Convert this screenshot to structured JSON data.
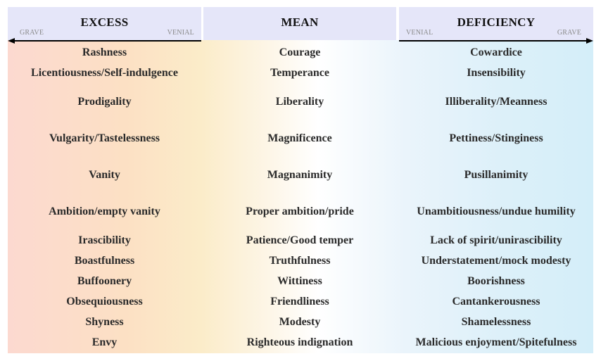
{
  "columns": {
    "excess": {
      "title": "EXCESS",
      "left_label": "GRAVE",
      "right_label": "VENIAL"
    },
    "mean": {
      "title": "MEAN"
    },
    "deficiency": {
      "title": "DEFICIENCY",
      "left_label": "VENIAL",
      "right_label": "GRAVE"
    }
  },
  "rows": [
    {
      "excess": "Rashness",
      "mean": "Courage",
      "deficiency": "Cowardice"
    },
    {
      "excess": "Licentiousness/Self-indulgence",
      "mean": "Temperance",
      "deficiency": "Insensibility"
    },
    {
      "excess": "Prodigality",
      "mean": "Liberality",
      "deficiency": "Illiberality/Meanness"
    },
    {
      "excess": "Vulgarity/Tastelessness",
      "mean": "Magnificence",
      "deficiency": "Pettiness/Stinginess"
    },
    {
      "excess": "Vanity",
      "mean": "Magnanimity",
      "deficiency": "Pusillanimity"
    },
    {
      "excess": "Ambition/empty vanity",
      "mean": "Proper ambition/pride",
      "deficiency": "Unambitiousness/undue humility"
    },
    {
      "excess": "Irascibility",
      "mean": "Patience/Good temper",
      "deficiency": "Lack of spirit/unirascibility"
    },
    {
      "excess": "Boastfulness",
      "mean": "Truthfulness",
      "deficiency": "Understatement/mock modesty"
    },
    {
      "excess": "Buffoonery",
      "mean": "Wittiness",
      "deficiency": "Boorishness"
    },
    {
      "excess": "Obsequiousness",
      "mean": "Friendliness",
      "deficiency": "Cantankerousness"
    },
    {
      "excess": "Shyness",
      "mean": "Modesty",
      "deficiency": "Shamelessness"
    },
    {
      "excess": "Envy",
      "mean": "Righteous indignation",
      "deficiency": "Malicious enjoyment/Spitefulness"
    }
  ]
}
